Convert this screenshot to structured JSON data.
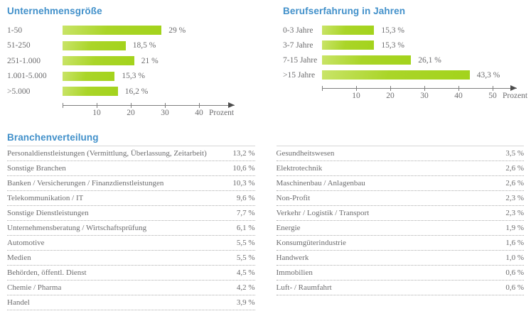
{
  "colors": {
    "title_blue": "#4190ca",
    "bar_green_light": "#c9e468",
    "bar_green_dark": "#a3d31c",
    "text_gray": "#6c6c6e",
    "axis_gray": "#7f7f7f"
  },
  "chart_data": [
    {
      "type": "bar",
      "orientation": "horizontal",
      "title": "Unternehmensgröße",
      "categories": [
        "1-50",
        "51-250",
        "251-1.000",
        "1.001-5.000",
        ">5.000"
      ],
      "values": [
        29,
        18.5,
        21,
        15.3,
        16.2
      ],
      "value_labels": [
        "29 %",
        "18,5 %",
        "21 %",
        "15,3 %",
        "16,2 %"
      ],
      "x_ticks": [
        10,
        20,
        30,
        40
      ],
      "x_tick_labels": [
        "10",
        "20",
        "30",
        "40"
      ],
      "axis_unit_label": "Prozent",
      "xlim": [
        0,
        45
      ],
      "grid": false,
      "legend": false
    },
    {
      "type": "bar",
      "orientation": "horizontal",
      "title": "Berufserfahrung in Jahren",
      "categories": [
        "0-3 Jahre",
        "3-7 Jahre",
        "7-15 Jahre",
        ">15 Jahre"
      ],
      "values": [
        15.3,
        15.3,
        26.1,
        43.3
      ],
      "value_labels": [
        "15,3 %",
        "15,3 %",
        "26,1 %",
        "43,3 %"
      ],
      "x_ticks": [
        10,
        20,
        30,
        40,
        50
      ],
      "x_tick_labels": [
        "10",
        "20",
        "30",
        "40",
        "50"
      ],
      "axis_unit_label": "Prozent",
      "xlim": [
        0,
        55
      ],
      "grid": false,
      "legend": false
    },
    {
      "type": "table",
      "title": "Branchenverteilung",
      "columns": [
        {
          "rows": [
            {
              "label": "Personaldienstleistungen (Vermittlung, Überlassung, Zeitarbeit)",
              "value": "13,2 %"
            },
            {
              "label": "Sonstige Branchen",
              "value": "10,6 %"
            },
            {
              "label": "Banken / Versicherungen / Finanzdienstleistungen",
              "value": "10,3 %"
            },
            {
              "label": "Telekommunikation / IT",
              "value": "9,6 %"
            },
            {
              "label": "Sonstige Dienstleistungen",
              "value": "7,7 %"
            },
            {
              "label": "Unternehmensberatung / Wirtschaftsprüfung",
              "value": "6,1 %"
            },
            {
              "label": "Automotive",
              "value": "5,5 %"
            },
            {
              "label": "Medien",
              "value": "5,5 %"
            },
            {
              "label": "Behörden, öffentl. Dienst",
              "value": "4,5 %"
            },
            {
              "label": "Chemie / Pharma",
              "value": "4,2 %"
            },
            {
              "label": "Handel",
              "value": "3,9 %"
            }
          ]
        },
        {
          "rows": [
            {
              "label": "Gesundheitswesen",
              "value": "3,5 %"
            },
            {
              "label": "Elektrotechnik",
              "value": "2,6 %"
            },
            {
              "label": "Maschinenbau / Anlagenbau",
              "value": "2,6 %"
            },
            {
              "label": "Non-Profit",
              "value": "2,3 %"
            },
            {
              "label": "Verkehr / Logistik / Transport",
              "value": "2,3 %"
            },
            {
              "label": "Energie",
              "value": "1,9 %"
            },
            {
              "label": "Konsumgüterindustrie",
              "value": "1,6 %"
            },
            {
              "label": "Handwerk",
              "value": "1,0 %"
            },
            {
              "label": "Immobilien",
              "value": "0,6 %"
            },
            {
              "label": "Luft- / Raumfahrt",
              "value": "0,6 %"
            }
          ]
        }
      ]
    }
  ]
}
